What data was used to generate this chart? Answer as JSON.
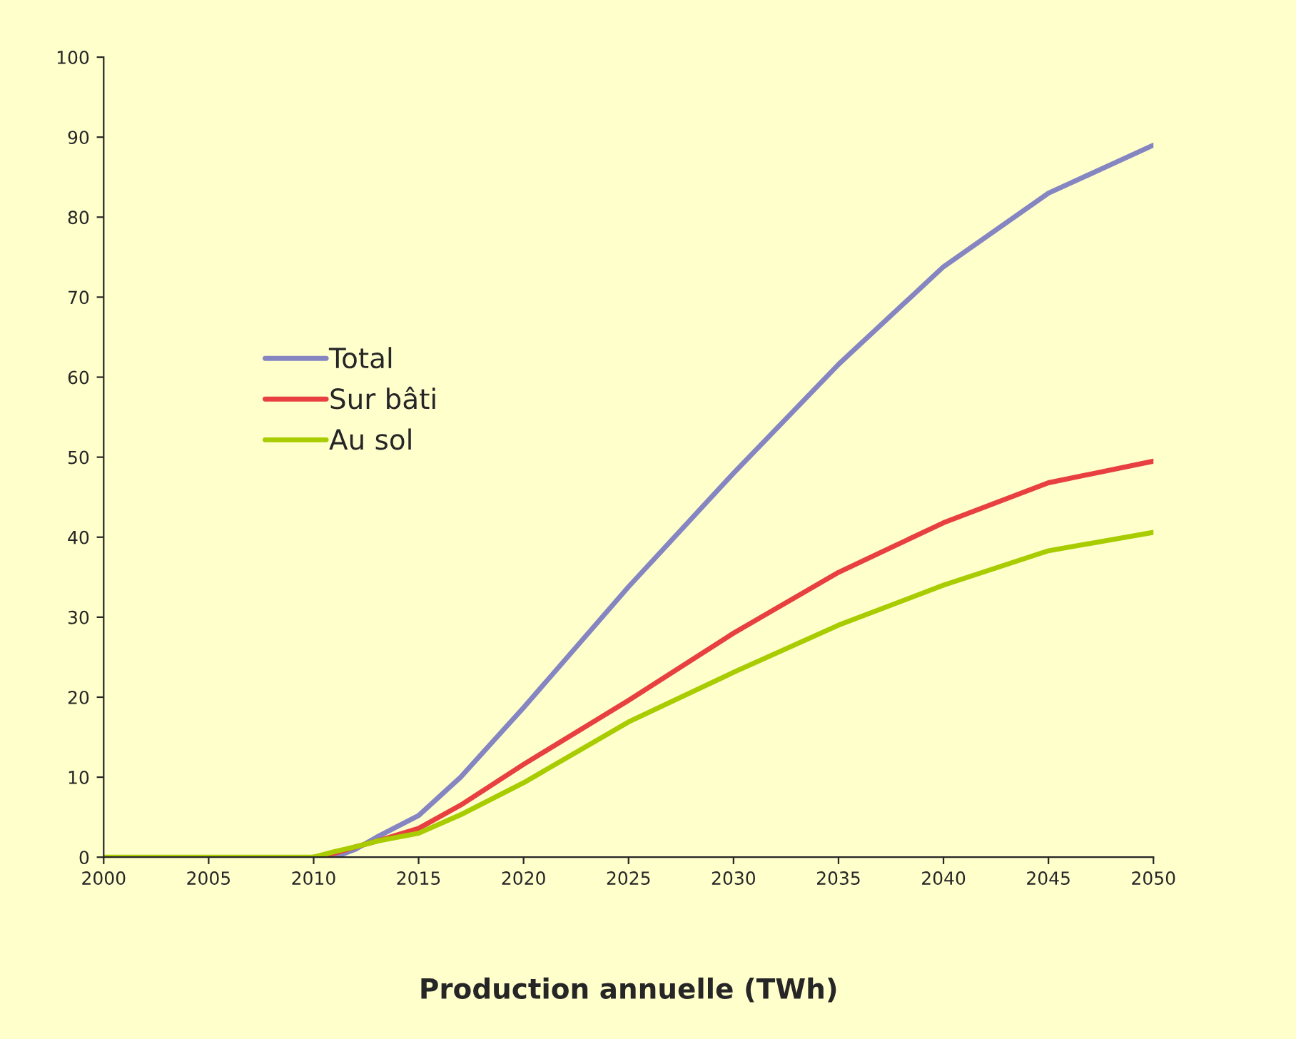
{
  "chart_data": {
    "type": "line",
    "xlabel": "Production annuelle (TWh)",
    "x": [
      2000,
      2005,
      2010,
      2011,
      2012,
      2013,
      2015,
      2017,
      2020,
      2025,
      2030,
      2035,
      2040,
      2045,
      2050
    ],
    "series": [
      {
        "name": "Total",
        "color": "#8585c2",
        "values": [
          null,
          null,
          0,
          0,
          1,
          2.5,
          5.2,
          10,
          18.7,
          33.8,
          48,
          61.6,
          73.8,
          83,
          89
        ]
      },
      {
        "name": "Sur bâti",
        "color": "#e84040",
        "values": [
          null,
          null,
          0,
          0.5,
          1.3,
          2,
          3.6,
          6.5,
          11.6,
          19.6,
          28,
          35.6,
          41.8,
          46.8,
          49.5
        ]
      },
      {
        "name": "Au sol",
        "color": "#a8cc00",
        "values": [
          0,
          0,
          0,
          0.7,
          1.3,
          2,
          3,
          5.3,
          9.3,
          16.9,
          23.1,
          29,
          34,
          38.3,
          40.6
        ]
      }
    ],
    "xlim": [
      2000,
      2050
    ],
    "xticks": [
      2000,
      2005,
      2010,
      2015,
      2020,
      2025,
      2030,
      2035,
      2040,
      2045,
      2050
    ],
    "ylim": [
      0,
      100
    ],
    "yticks": [
      0,
      10,
      20,
      30,
      40,
      50,
      60,
      70,
      80,
      90,
      100
    ],
    "grid": false,
    "legend": "left",
    "marker": "none",
    "line_style": "solid"
  }
}
